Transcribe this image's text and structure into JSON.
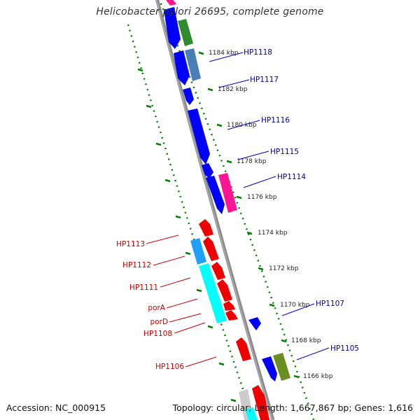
{
  "title": "Helicobacter pylori 26695, complete genome",
  "footer": {
    "accession": "Accession: NC_000915",
    "summary": "Topology: circular; Length: 1,667,867 bp; Genes: 1,616"
  },
  "colors": {
    "backbone": "#808080",
    "tick": "#008000",
    "forward_label": "#000099",
    "reverse_label": "#cc0000",
    "blue": "#0000ff",
    "steelblue": "#4a7fb5",
    "green": "#2e8b2e",
    "magenta": "#ff1493",
    "red": "#ee0000",
    "deepskyblue": "#1ea0ff",
    "cyan": "#00ffff",
    "olive": "#6b8e23",
    "silver": "#cccccc"
  },
  "scale_labels": [
    "1184 kbp",
    "1182 kbp",
    "1180 kbp",
    "1178 kbp",
    "1176 kbp",
    "1174 kbp",
    "1172 kbp",
    "1170 kbp",
    "1168 kbp",
    "1166 kbp"
  ],
  "gene_labels": [
    {
      "text": "HP1118",
      "strand": "forward"
    },
    {
      "text": "HP1117",
      "strand": "forward"
    },
    {
      "text": "HP1116",
      "strand": "forward"
    },
    {
      "text": "HP1115",
      "strand": "forward"
    },
    {
      "text": "HP1114",
      "strand": "forward"
    },
    {
      "text": "HP1107",
      "strand": "forward"
    },
    {
      "text": "HP1105",
      "strand": "forward"
    },
    {
      "text": "HP1113",
      "strand": "reverse"
    },
    {
      "text": "HP1112",
      "strand": "reverse"
    },
    {
      "text": "HP1111",
      "strand": "reverse"
    },
    {
      "text": "porA",
      "strand": "reverse"
    },
    {
      "text": "porD",
      "strand": "reverse"
    },
    {
      "text": "HP1108",
      "strand": "reverse"
    },
    {
      "text": "HP1106",
      "strand": "reverse"
    }
  ]
}
